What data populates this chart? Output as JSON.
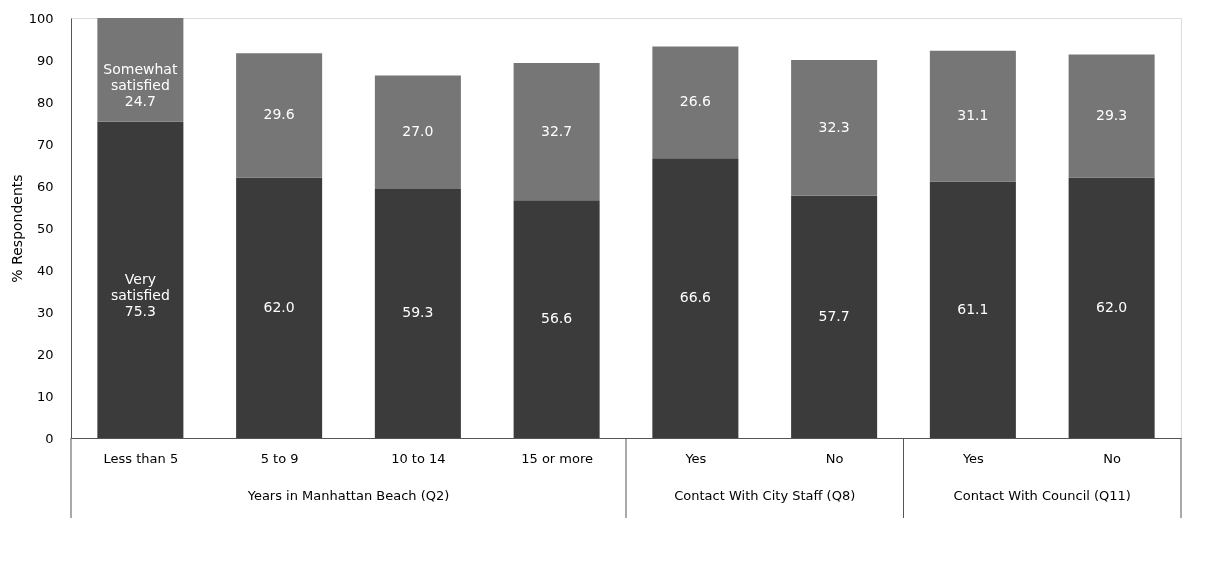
{
  "chart_data": {
    "type": "bar",
    "stacked": true,
    "ylabel": "% Respondents",
    "categories": [
      "Less than 5",
      "5 to 9",
      "10 to 14",
      "15 or more",
      "Yes",
      "No",
      "Yes",
      "No"
    ],
    "series": [
      {
        "name": "Very satisfied",
        "color": "#3b3b3b",
        "values": [
          75.3,
          62.0,
          59.3,
          56.6,
          66.6,
          57.7,
          61.1,
          62.0
        ],
        "value_labels": [
          "75.3",
          "62.0",
          "59.3",
          "56.6",
          "66.6",
          "57.7",
          "61.1",
          "62.0"
        ]
      },
      {
        "name": "Somewhat satisfied",
        "color": "#767676",
        "values": [
          24.7,
          29.6,
          27.0,
          32.7,
          26.6,
          32.3,
          31.1,
          29.3
        ],
        "value_labels": [
          "24.7",
          "29.6",
          "27.0",
          "32.7",
          "26.6",
          "32.3",
          "31.1",
          "29.3"
        ]
      }
    ],
    "annotations": [
      "Years in Manhattan Beach (Q2)",
      "Contact With City Staff (Q8)",
      "Contact With Council (Q11)"
    ],
    "ylim": [
      0,
      100
    ],
    "yticks": [
      0,
      10,
      20,
      30,
      40,
      50,
      60,
      70,
      80,
      90,
      100
    ],
    "grid": false
  }
}
